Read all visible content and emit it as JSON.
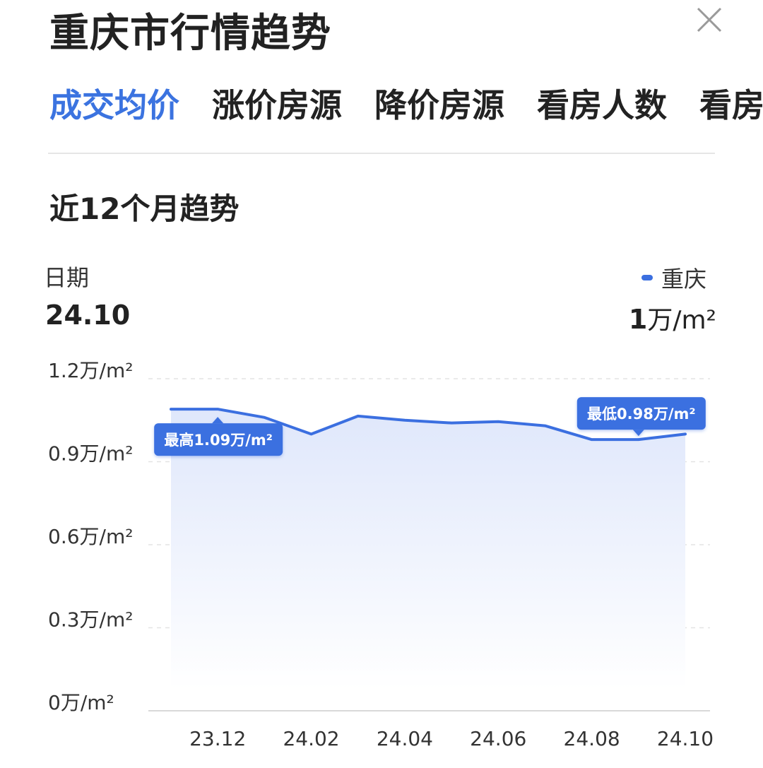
{
  "header": {
    "title": "重庆市行情趋势"
  },
  "tabs": [
    {
      "label": "成交均价",
      "active": true
    },
    {
      "label": "涨价房源",
      "active": false
    },
    {
      "label": "降价房源",
      "active": false
    },
    {
      "label": "看房人数",
      "active": false
    },
    {
      "label": "看房",
      "active": false
    }
  ],
  "section": {
    "title": "近12个月趋势"
  },
  "summary": {
    "date_label": "日期",
    "date_value": "24.10",
    "legend_name": "重庆",
    "current_value_num": "1",
    "current_value_unit": "万/m²"
  },
  "colors": {
    "accent": "#3b73e0",
    "line": "#3b6fe0",
    "area_top": "#dfe7fb",
    "grid": "#e3e3e3"
  },
  "chart_data": {
    "type": "area",
    "title": "",
    "xlabel": "",
    "ylabel": "",
    "x": [
      "23.11",
      "23.12",
      "24.01",
      "24.02",
      "24.03",
      "24.04",
      "24.05",
      "24.06",
      "24.07",
      "24.08",
      "24.09",
      "24.10"
    ],
    "x_tick_labels": [
      "23.12",
      "24.02",
      "24.04",
      "24.06",
      "24.08",
      "24.10"
    ],
    "series": [
      {
        "name": "重庆",
        "values": [
          1.09,
          1.09,
          1.06,
          1.0,
          1.065,
          1.05,
          1.04,
          1.045,
          1.03,
          0.98,
          0.98,
          1.0
        ]
      }
    ],
    "ylim": [
      0,
      1.2
    ],
    "y_ticks": [
      0,
      0.3,
      0.6,
      0.9,
      1.2
    ],
    "y_tick_labels": [
      "0万/m²",
      "0.3万/m²",
      "0.6万/m²",
      "0.9万/m²",
      "1.2万/m²"
    ],
    "grid": true,
    "annotations": [
      {
        "label": "最高1.09万/m²",
        "x_index": 1,
        "value": 1.09,
        "position": "below"
      },
      {
        "label": "最低0.98万/m²",
        "x_index": 10,
        "value": 0.98,
        "position": "above"
      }
    ]
  }
}
